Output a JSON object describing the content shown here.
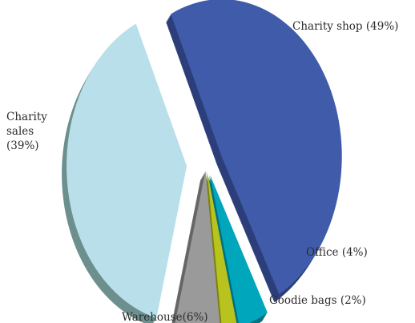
{
  "chart_data": {
    "type": "pie",
    "style": "3d-exploded",
    "legend": "none",
    "slices": [
      {
        "label": "Charity shop (49%)",
        "value": 49,
        "color": "#3f5ba9",
        "side": "#2c3f7a"
      },
      {
        "label": "Office (4%)",
        "value": 4,
        "color": "#00a6bb",
        "side": "#007180"
      },
      {
        "label": "Goodie bags (2%)",
        "value": 2,
        "color": "#b8c31e",
        "side": "#7a8210"
      },
      {
        "label": "Warehouse(6%)",
        "value": 6,
        "color": "#9a9a9a",
        "side": "#666666"
      },
      {
        "label": "Charity sales (39%)",
        "value": 39,
        "color": "#b9dfea",
        "side": "#6d8f8e"
      }
    ]
  }
}
